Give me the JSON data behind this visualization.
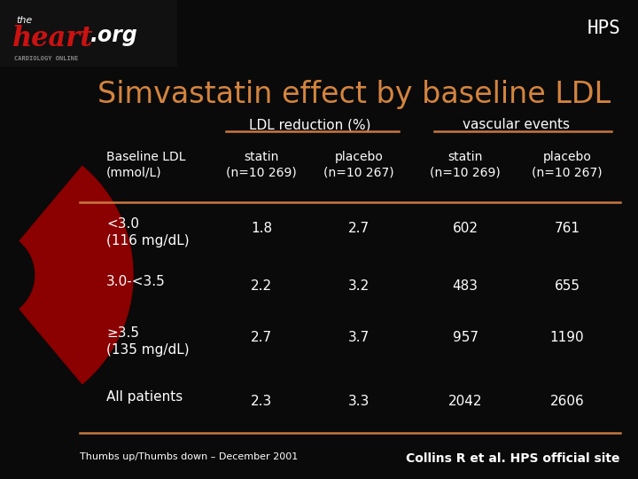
{
  "background_color": "#0a0a0a",
  "title": "Simvastatin effect by baseline LDL",
  "title_color": "#d4843e",
  "hps_label": "HPS",
  "hps_color": "#ffffff",
  "group_header1": "LDL reduction (%)",
  "group_header2": "vascular events",
  "col_headers": [
    "Baseline LDL\n(mmol/L)",
    "statin\n(n=10 269)",
    "placebo\n(n=10 267)",
    "statin\n(n=10 269)",
    "placebo\n(n=10 267)"
  ],
  "rows": [
    [
      "<3.0\n(116 mg/dL)",
      "1.8",
      "2.7",
      "602",
      "761"
    ],
    [
      "3.0-<3.5",
      "2.2",
      "3.2",
      "483",
      "655"
    ],
    [
      "≥3.5\n(135 mg/dL)",
      "2.7",
      "3.7",
      "957",
      "1190"
    ],
    [
      "All patients",
      "2.3",
      "3.3",
      "2042",
      "2606"
    ]
  ],
  "header_color": "#ffffff",
  "cell_color": "#ffffff",
  "line_color": "#c87840",
  "footer_left": "Thumbs up/Thumbs down – December 2001",
  "footer_right": "Collins R et al. HPS official site",
  "footer_color": "#ffffff",
  "left_bar_color": "#8b0000",
  "logo_bg": "#111111",
  "logo_the_color": "#ffffff",
  "logo_heart_color": "#cc1111",
  "logo_org_color": "#ffffff",
  "logo_cardiology_color": "#888888"
}
